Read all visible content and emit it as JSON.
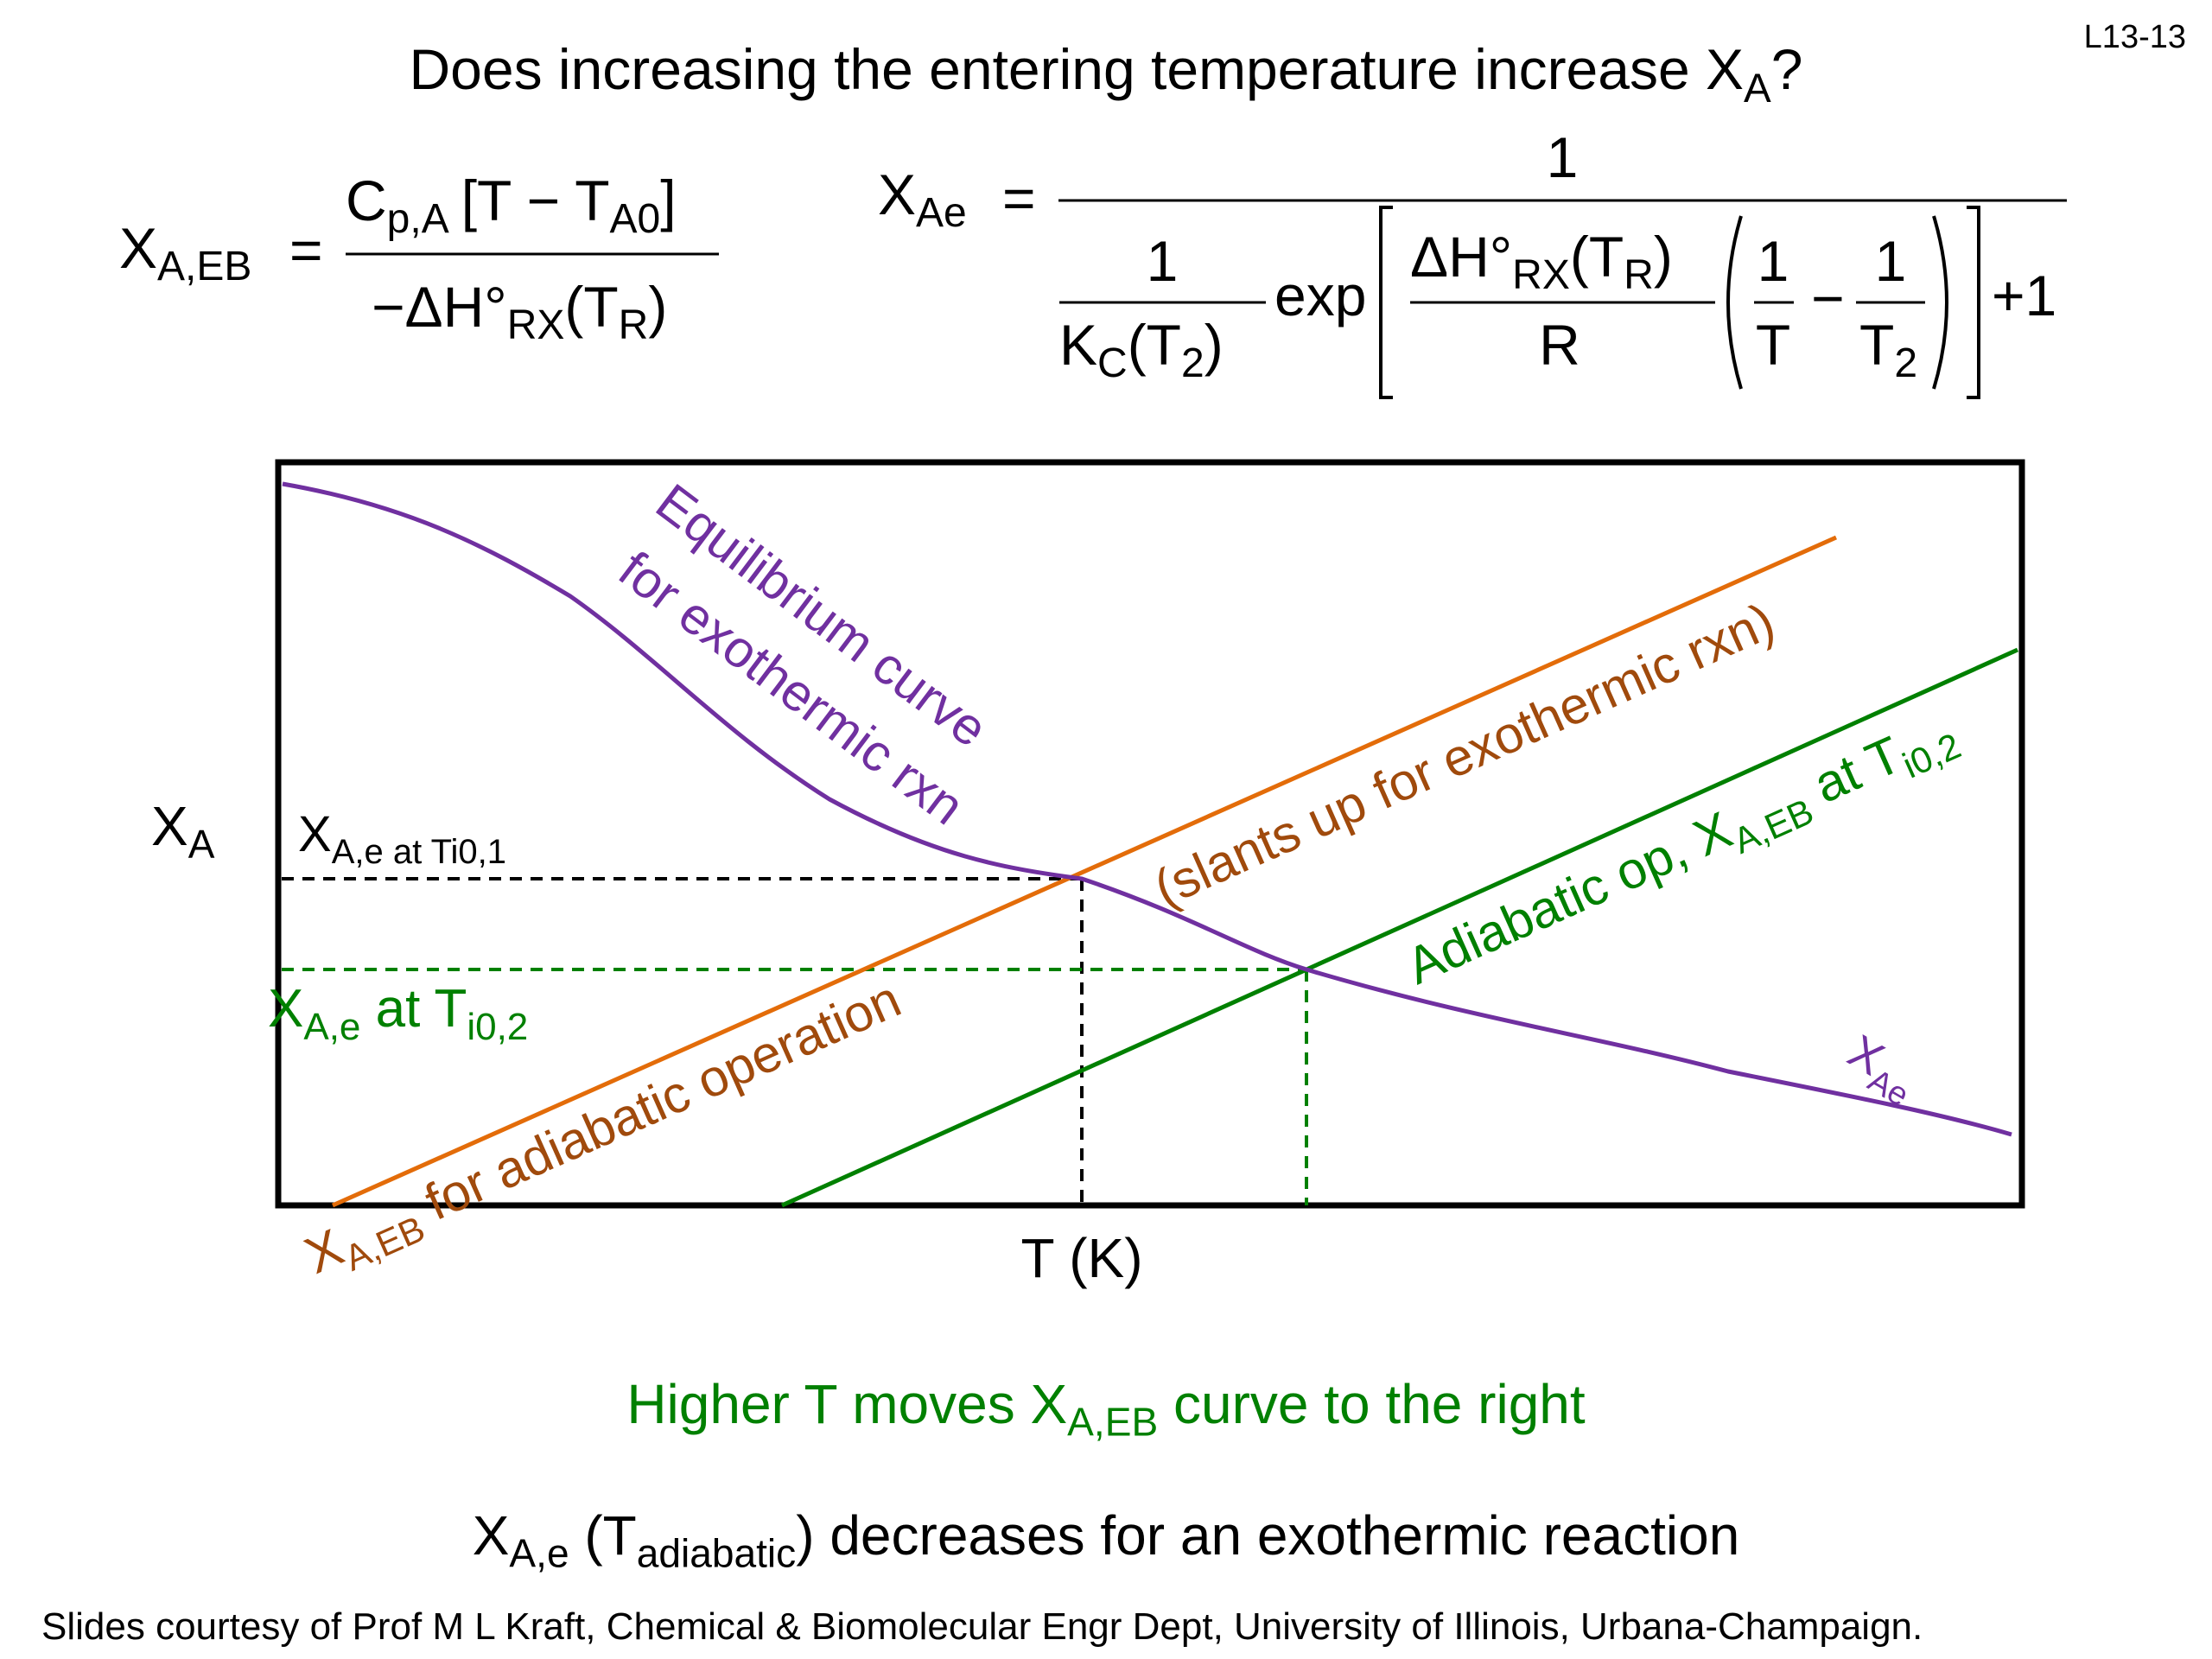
{
  "slide_id": "L13-13",
  "title": {
    "main": "Does increasing the entering temperature increase X",
    "sub": "A",
    "tail": "?"
  },
  "equations": {
    "xaeb": {
      "lhs": "X",
      "lhs_sub": "A,EB",
      "eq": "=",
      "num_cp": "C",
      "num_cp_sub": "p,A",
      "num_bracket": "[T − T",
      "num_t_sub": "A0",
      "num_close": "]",
      "den_dh": "−ΔH°",
      "den_dh_sub": "RX",
      "den_t": "(T",
      "den_t_sub": "R",
      "den_close": ")"
    },
    "xae": {
      "lhs": "X",
      "lhs_sub": "Ae",
      "eq": "=",
      "one": "1",
      "inner_one": "1",
      "kc": "K",
      "kc_sub": "C",
      "kc_arg": "(T",
      "kc_arg_sub": "2",
      "kc_close": ")",
      "exp": "exp",
      "dh": "ΔH°",
      "dh_sub": "RX",
      "dh_arg": "(T",
      "dh_arg_sub": "R",
      "dh_close": ")",
      "r": "R",
      "frac1_num": "1",
      "frac1_den": "T",
      "minus": "−",
      "frac2_num": "1",
      "frac2_den": "T",
      "frac2_den_sub": "2",
      "plus1": "+1"
    }
  },
  "diagram": {
    "y_axis_label": "X",
    "y_axis_sub": "A",
    "x_axis_label": "T (K)",
    "equilibrium_label_1": "Equilibrium curve",
    "equilibrium_label_2": "for exothermic rxn",
    "xae_curve_label": "X",
    "xae_curve_sub": "Ae",
    "xae_at_ti01": "X",
    "xae_at_ti01_sub": "A,e at Ti0,1",
    "xae_at_ti02": "X",
    "xae_at_ti02_sub": "A,e",
    "xae_at_ti02_mid": " at T",
    "xae_at_ti02_sub2": "i0,2",
    "orange_label_1": "(slants up for exothermic rxn)",
    "orange_label_2_main": "X",
    "orange_label_2_sub": "A,EB",
    "orange_label_2_tail": " for adiabatic operation",
    "green_label_main": "Adiabatic op, X",
    "green_label_sub": "A,EB",
    "green_label_mid": " at T",
    "green_label_sub2": "i0,2",
    "colors": {
      "equilibrium": "#7030a0",
      "adiabatic_1": "#e36c09",
      "adiabatic_1_text": "#a04a0c",
      "adiabatic_2": "#008000",
      "frame": "#000000"
    }
  },
  "notes": {
    "higher_main": "Higher T moves X",
    "higher_sub": "A,EB",
    "higher_tail": " curve to the right",
    "dec_main": "X",
    "dec_sub": "A,e",
    "dec_mid": " (T",
    "dec_sub2": "adiabatic",
    "dec_tail": ") decreases for an exothermic reaction"
  },
  "credit": "Slides courtesy of Prof M L Kraft, Chemical & Biomolecular Engr Dept, University of Illinois, Urbana-Champaign."
}
